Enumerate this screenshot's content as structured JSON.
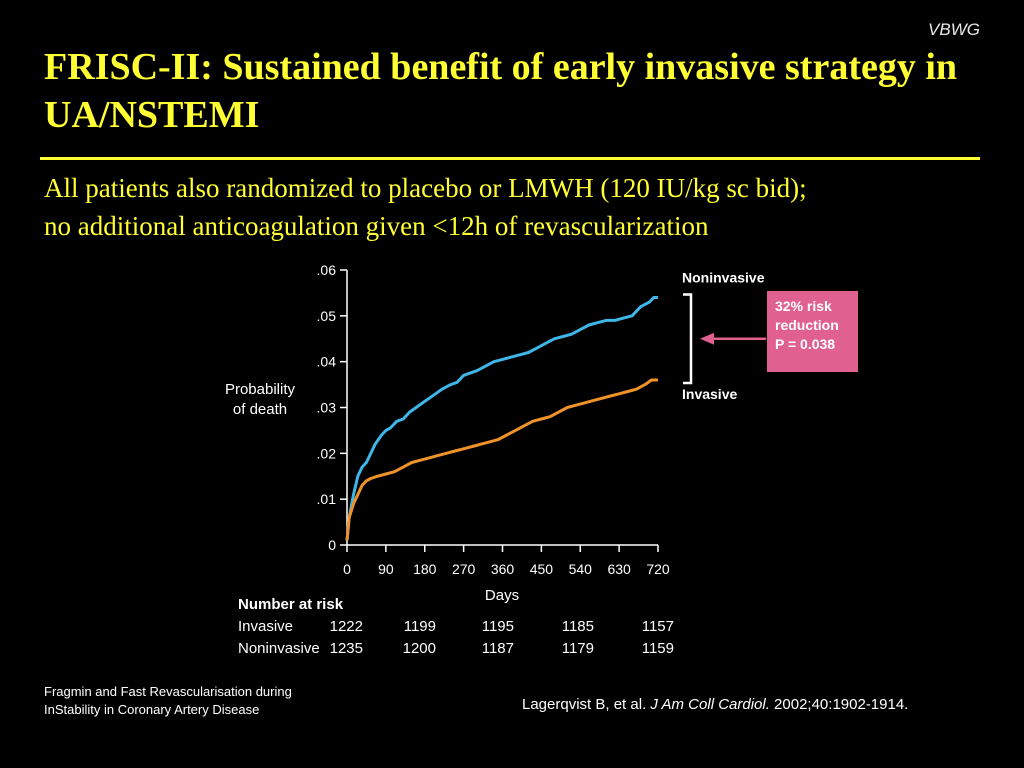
{
  "tag": "VBWG",
  "title": "FRISC-II: Sustained benefit of early invasive strategy in UA/NSTEMI",
  "subtitle_line1": "All patients also randomized to placebo or LMWH (120 IU/kg sc bid);",
  "subtitle_line2": "no additional anticoagulation given <12h of revascularization",
  "chart_data": {
    "type": "line",
    "ylabel_line1": "Probability",
    "ylabel_line2": "of death",
    "xlabel": "Days",
    "xlim": [
      0,
      720
    ],
    "ylim": [
      0,
      0.06
    ],
    "xticks": [
      0,
      90,
      180,
      270,
      360,
      450,
      540,
      630,
      720
    ],
    "xtick_labels": [
      "0",
      "90",
      "180",
      "270",
      "360",
      "450",
      "540",
      "630",
      "720"
    ],
    "yticks": [
      0,
      0.01,
      0.02,
      0.03,
      0.04,
      0.05,
      0.06
    ],
    "ytick_labels": [
      "0",
      ".01",
      ".02",
      ".03",
      ".04",
      ".05",
      ".06"
    ],
    "series": [
      {
        "name": "Noninvasive",
        "color": "#3fb6e8",
        "x": [
          0,
          5,
          15,
          25,
          35,
          45,
          55,
          65,
          80,
          90,
          100,
          115,
          130,
          145,
          160,
          175,
          190,
          205,
          220,
          240,
          255,
          270,
          285,
          300,
          320,
          340,
          360,
          380,
          400,
          420,
          440,
          460,
          480,
          500,
          520,
          540,
          560,
          580,
          600,
          620,
          640,
          660,
          680,
          700,
          710,
          720
        ],
        "y": [
          0.001,
          0.006,
          0.011,
          0.015,
          0.017,
          0.018,
          0.02,
          0.022,
          0.024,
          0.025,
          0.0255,
          0.027,
          0.0275,
          0.029,
          0.03,
          0.031,
          0.032,
          0.033,
          0.034,
          0.035,
          0.0355,
          0.037,
          0.0375,
          0.038,
          0.039,
          0.04,
          0.0405,
          0.041,
          0.0415,
          0.042,
          0.043,
          0.044,
          0.045,
          0.0455,
          0.046,
          0.047,
          0.048,
          0.0485,
          0.049,
          0.049,
          0.0495,
          0.05,
          0.052,
          0.053,
          0.054,
          0.054
        ]
      },
      {
        "name": "Invasive",
        "color": "#f0922a",
        "x": [
          0,
          5,
          15,
          25,
          35,
          45,
          55,
          70,
          90,
          110,
          130,
          150,
          170,
          190,
          210,
          230,
          250,
          270,
          290,
          310,
          330,
          350,
          370,
          390,
          410,
          430,
          450,
          470,
          490,
          510,
          530,
          550,
          570,
          590,
          610,
          630,
          650,
          670,
          690,
          705,
          720
        ],
        "y": [
          0.001,
          0.006,
          0.009,
          0.011,
          0.013,
          0.014,
          0.0145,
          0.015,
          0.0155,
          0.016,
          0.017,
          0.018,
          0.0185,
          0.019,
          0.0195,
          0.02,
          0.0205,
          0.021,
          0.0215,
          0.022,
          0.0225,
          0.023,
          0.024,
          0.025,
          0.026,
          0.027,
          0.0275,
          0.028,
          0.029,
          0.03,
          0.0305,
          0.031,
          0.0315,
          0.032,
          0.0325,
          0.033,
          0.0335,
          0.034,
          0.035,
          0.036,
          0.036
        ]
      }
    ]
  },
  "annotation": {
    "line1": "32% risk",
    "line2": "reduction",
    "line3": "P = 0.038",
    "color": "#e0608f"
  },
  "number_at_risk": {
    "title": "Number at risk",
    "rows": [
      {
        "label": "Invasive",
        "values": [
          "1222",
          "1199",
          "1195",
          "1185",
          "1157"
        ]
      },
      {
        "label": "Noninvasive",
        "values": [
          "1235",
          "1200",
          "1187",
          "1179",
          "1159"
        ]
      }
    ]
  },
  "footer": {
    "left_line1": "Fragmin and Fast Revascularisation during",
    "left_line2": "InStability in Coronary Artery Disease",
    "citation_authors": "Lagerqvist B, et al. ",
    "citation_journal": "J Am Coll Cardiol.",
    "citation_rest": " 2002;40:1902-1914."
  }
}
